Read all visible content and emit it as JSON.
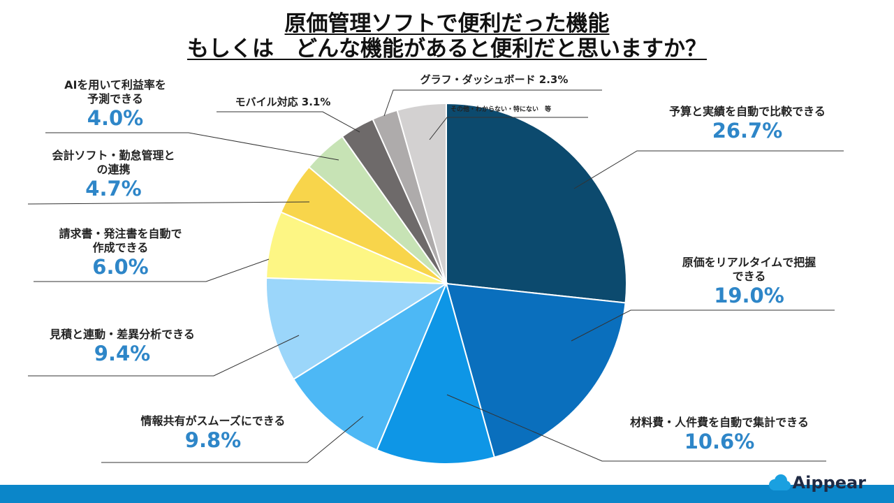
{
  "title": {
    "line1": "原価管理ソフトで便利だった機能",
    "line2": "もしくは　どんな機能があると便利だと思いますか？"
  },
  "brand": {
    "name": "Aippear"
  },
  "colors": {
    "accent_text": "#2e86c8",
    "footer_bar": "#0b86c9"
  },
  "chart_data": {
    "type": "pie",
    "start": "top, clockwise",
    "slices": [
      {
        "label": "予算と実績を自動で比較できる",
        "value": 26.7,
        "display": "26.7%",
        "color": "#0c4a6e"
      },
      {
        "label": "原価をリアルタイムで把握できる",
        "value": 19.0,
        "display": "19.0%",
        "color": "#0a6fbd"
      },
      {
        "label": "材料費・人件費を自動で集計できる",
        "value": 10.6,
        "display": "10.6%",
        "color": "#0e96e6"
      },
      {
        "label": "情報共有がスムーズにできる",
        "value": 9.8,
        "display": "9.8%",
        "color": "#4db8f5"
      },
      {
        "label": "見積と連動・差異分析できる",
        "value": 9.4,
        "display": "9.4%",
        "color": "#9bd6fa"
      },
      {
        "label": "請求書・発注書を自動で作成できる",
        "value": 6.0,
        "display": "6.0%",
        "color": "#fdf684"
      },
      {
        "label": "会計ソフト・勤怠管理との連携",
        "value": 4.7,
        "display": "4.7%",
        "color": "#f8d54b"
      },
      {
        "label": "AIを用いて利益率を予測できる",
        "value": 4.0,
        "display": "4.0%",
        "color": "#c7e3b5"
      },
      {
        "label": "モバイル対応",
        "value": 3.1,
        "display": "3.1%",
        "color": "#6e6a6a"
      },
      {
        "label": "グラフ・ダッシュボード",
        "value": 2.3,
        "display": "2.3%",
        "color": "#aeabab"
      },
      {
        "label": "その他・わからない・特にない　等",
        "value": 4.4,
        "display": "",
        "color": "#d3d1d1"
      }
    ]
  },
  "labels": {
    "s0": {
      "l1": "予算と実績を自動で比較できる",
      "pct": "26.7%"
    },
    "s1": {
      "l1": "原価をリアルタイムで把握",
      "l2": "できる",
      "pct": "19.0%"
    },
    "s2": {
      "l1": "材料費・人件費を自動で集計できる",
      "pct": "10.6%"
    },
    "s3": {
      "l1": "情報共有がスムーズにできる",
      "pct": "9.8%"
    },
    "s4": {
      "l1": "見積と連動・差異分析できる",
      "pct": "9.4%"
    },
    "s5": {
      "l1": "請求書・発注書を自動で",
      "l2": "作成できる",
      "pct": "6.0%"
    },
    "s6": {
      "l1": "会計ソフト・勤怠管理と",
      "l2": "の連携",
      "pct": "4.7%"
    },
    "s7": {
      "l1": "AIを用いて利益率を",
      "l2": "予測できる",
      "pct": "4.0%"
    },
    "s8": {
      "text": "モバイル対応 3.1%"
    },
    "s9": {
      "text": "グラフ・ダッシュボード 2.3%"
    },
    "s10": {
      "text": "その他・わからない・特にない　等"
    }
  }
}
